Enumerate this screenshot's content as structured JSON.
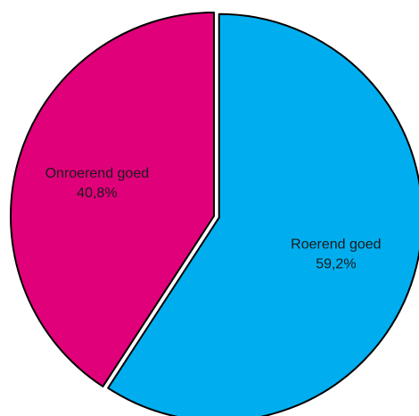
{
  "chart_data": {
    "type": "pie",
    "title": "",
    "slices": [
      {
        "label": "Roerend goed",
        "value": 59.2,
        "value_label": "59,2%",
        "color": "#00AEEF"
      },
      {
        "label": "Onroerend goed",
        "value": 40.8,
        "value_label": "40,8%",
        "color": "#E0007A"
      }
    ],
    "start_angle": "12 o'clock",
    "direction": "clockwise",
    "exploded_slice": "Roerend goed",
    "edge_color": "#000000"
  }
}
